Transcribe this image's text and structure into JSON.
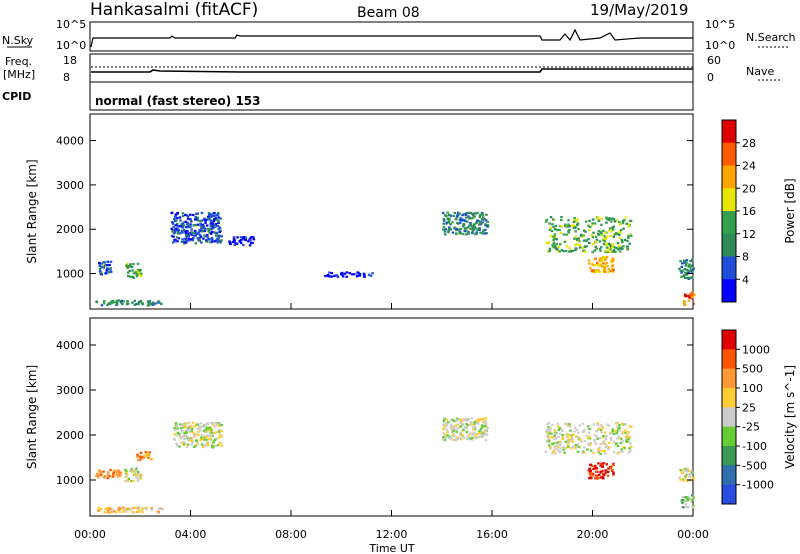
{
  "header": {
    "station": "Hankasalmi (fitACF)",
    "beam": "Beam 08",
    "date": "19/May/2019"
  },
  "control_panel": {
    "left_label_sky": "N.Sky",
    "left_label_freq": [
      "Freq.",
      "[MHz]"
    ],
    "left_label_cpid": "CPID",
    "right_label_search": "N.Search",
    "right_label_nave": "Nave",
    "sky_axis_left": [
      "10^5",
      "10^0"
    ],
    "sky_axis_right": [
      "10^5",
      "10^0"
    ],
    "freq_axis_left": [
      "18",
      "8"
    ],
    "nave_axis_right": [
      "60",
      "0"
    ],
    "cpid_text": "normal (fast stereo) 153"
  },
  "x_axis": {
    "title": "Time UT",
    "ticks": [
      "00:00",
      "04:00",
      "08:00",
      "12:00",
      "16:00",
      "20:00",
      "00:00"
    ]
  },
  "chart_data": [
    {
      "type": "heatmap",
      "name": "power-panel",
      "xlabel": "Time UT",
      "ylabel": "Slant Range [km]",
      "x_range_hours": [
        0,
        24
      ],
      "ylim": [
        200,
        4600
      ],
      "y_ticks": [
        "1000",
        "2000",
        "3000",
        "4000"
      ],
      "colorbar": {
        "label": "Power [dB]",
        "ticks": [
          "28",
          "24",
          "20",
          "16",
          "12",
          "8",
          "4"
        ],
        "colors": [
          "#0000ff",
          "#1f4fd8",
          "#2e8b57",
          "#33a04a",
          "#e6e600",
          "#ffa500",
          "#ff5a00",
          "#e00000"
        ]
      },
      "regions": [
        {
          "t0": 0.2,
          "t1": 2.8,
          "r0": 300,
          "r1": 420,
          "level": 2
        },
        {
          "t0": 0.2,
          "t1": 0.8,
          "r0": 1000,
          "r1": 1300,
          "level": 1
        },
        {
          "t0": 1.4,
          "t1": 2.0,
          "r0": 900,
          "r1": 1250,
          "level": 3
        },
        {
          "t0": 3.2,
          "t1": 5.2,
          "r0": 1700,
          "r1": 2400,
          "level": 1
        },
        {
          "t0": 5.5,
          "t1": 6.5,
          "r0": 1650,
          "r1": 1850,
          "level": 0
        },
        {
          "t0": 9.2,
          "t1": 11.2,
          "r0": 950,
          "r1": 1050,
          "level": 0
        },
        {
          "t0": 14.0,
          "t1": 15.8,
          "r0": 1900,
          "r1": 2400,
          "level": 2
        },
        {
          "t0": 18.1,
          "t1": 21.5,
          "r0": 1500,
          "r1": 2300,
          "level": 3
        },
        {
          "t0": 19.8,
          "t1": 20.8,
          "r0": 1050,
          "r1": 1400,
          "level": 5
        },
        {
          "t0": 23.4,
          "t1": 24.0,
          "r0": 900,
          "r1": 1350,
          "level": 2
        },
        {
          "t0": 23.6,
          "t1": 24.0,
          "r0": 300,
          "r1": 600,
          "level": 6
        }
      ]
    },
    {
      "type": "heatmap",
      "name": "velocity-panel",
      "xlabel": "Time UT",
      "ylabel": "Slant Range [km]",
      "x_range_hours": [
        0,
        24
      ],
      "ylim": [
        200,
        4600
      ],
      "y_ticks": [
        "1000",
        "2000",
        "3000",
        "4000"
      ],
      "colorbar": {
        "label": "Velocity [m s^-1]",
        "ticks": [
          "1000",
          "500",
          "100",
          "25",
          "-25",
          "-100",
          "-500",
          "-1000"
        ],
        "colors": [
          "#2a4de0",
          "#2f6fb0",
          "#3a9a55",
          "#66cc33",
          "#cccccc",
          "#ffcc33",
          "#ff9933",
          "#ff5500",
          "#e00000"
        ]
      },
      "regions": [
        {
          "t0": 0.2,
          "t1": 3.0,
          "r0": 300,
          "r1": 420,
          "level": 5
        },
        {
          "t0": 0.2,
          "t1": 1.2,
          "r0": 1050,
          "r1": 1250,
          "level": 6
        },
        {
          "t0": 1.3,
          "t1": 2.0,
          "r0": 1000,
          "r1": 1300,
          "level": 4
        },
        {
          "t0": 1.8,
          "t1": 2.4,
          "r0": 1450,
          "r1": 1650,
          "level": 6
        },
        {
          "t0": 3.3,
          "t1": 5.2,
          "r0": 1750,
          "r1": 2300,
          "level": 4
        },
        {
          "t0": 14.0,
          "t1": 15.8,
          "r0": 1900,
          "r1": 2400,
          "level": 4
        },
        {
          "t0": 18.1,
          "t1": 21.5,
          "r0": 1600,
          "r1": 2300,
          "level": 4
        },
        {
          "t0": 19.8,
          "t1": 20.8,
          "r0": 1050,
          "r1": 1400,
          "level": 8
        },
        {
          "t0": 23.5,
          "t1": 24.0,
          "r0": 400,
          "r1": 700,
          "level": 3
        },
        {
          "t0": 23.4,
          "t1": 24.0,
          "r0": 1000,
          "r1": 1300,
          "level": 4
        }
      ]
    }
  ]
}
